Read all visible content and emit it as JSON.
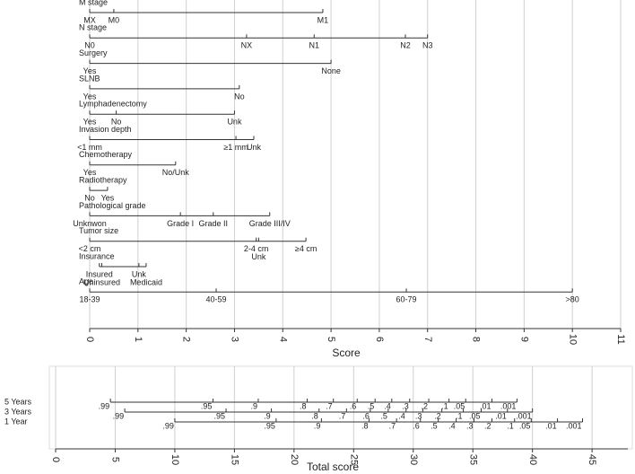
{
  "chart_data": [
    {
      "type": "nomogram",
      "xlabel": "Score",
      "xlim": [
        0,
        11
      ],
      "xticks": [
        0,
        1,
        2,
        3,
        4,
        5,
        6,
        7,
        8,
        9,
        10,
        11
      ],
      "rows": [
        {
          "name": "M stage",
          "levels": [
            "MX",
            "M0",
            "M1"
          ],
          "points": [
            0,
            0.5,
            4.83
          ]
        },
        {
          "name": "N stage",
          "levels": [
            "N0",
            "NX",
            "N1",
            "N2",
            "N3"
          ],
          "points": [
            0,
            3.25,
            4.65,
            6.54,
            7.0
          ]
        },
        {
          "name": "Surgery",
          "levels": [
            "Yes",
            "None"
          ],
          "points": [
            0,
            5.0
          ]
        },
        {
          "name": "SLNB",
          "levels": [
            "Yes",
            "No"
          ],
          "points": [
            0,
            3.1
          ]
        },
        {
          "name": "Lymphadenectomy",
          "levels": [
            "Yes",
            "No",
            "Unk"
          ],
          "points": [
            0,
            0.55,
            3.0
          ]
        },
        {
          "name": "Invasion depth",
          "levels": [
            "<1 mm",
            "≥1 mm",
            "Unk"
          ],
          "points": [
            0,
            3.03,
            3.4
          ]
        },
        {
          "name": "Chemotherapy",
          "levels": [
            "Yes",
            "No/Unk"
          ],
          "points": [
            0,
            1.78
          ]
        },
        {
          "name": "Radiotherapy",
          "levels": [
            "No",
            "Yes"
          ],
          "points": [
            0,
            0.37
          ]
        },
        {
          "name": "Pathological grade",
          "levels": [
            "Unknwon",
            "Grade I",
            "Grade II",
            "Grade III/IV"
          ],
          "points": [
            0,
            1.88,
            2.56,
            3.73
          ]
        },
        {
          "name": "Tumor size",
          "levels": [
            "<2 cm",
            "2-4 cm",
            "Unk",
            "≥4 cm"
          ],
          "points": [
            0,
            3.45,
            3.5,
            4.48
          ]
        },
        {
          "name": "Insurance",
          "levels": [
            "Insured",
            "Uninsured",
            "Unk",
            "Medicaid"
          ],
          "points": [
            0.2,
            0.25,
            1.02,
            1.17
          ]
        },
        {
          "name": "Age",
          "levels": [
            "18-39",
            "40-59",
            "60-79",
            ">80"
          ],
          "points": [
            0,
            2.62,
            6.56,
            10.0
          ]
        }
      ]
    },
    {
      "type": "nomogram",
      "xlabel": "Total score",
      "xlim": [
        0,
        48
      ],
      "xticks": [
        0,
        5,
        10,
        15,
        20,
        25,
        30,
        35,
        40,
        45
      ],
      "rows": [
        {
          "name": "5 Years",
          "levels": [
            ".99",
            ".95",
            ".9",
            ".8",
            ".7",
            ".6",
            ".5",
            ".4",
            ".3",
            ".2",
            ".1",
            ".05",
            ".01",
            ".001"
          ],
          "points": [
            4.6,
            13.2,
            17.0,
            21.1,
            23.3,
            25.3,
            26.8,
            28.2,
            29.7,
            31.3,
            33.0,
            34.4,
            36.6,
            38.7
          ]
        },
        {
          "name": "3 Years",
          "levels": [
            ".99",
            ".95",
            ".9",
            ".8",
            ".7",
            ".6",
            ".5",
            ".4",
            ".3",
            ".2",
            ".1",
            ".05",
            ".01",
            ".001"
          ],
          "points": [
            5.8,
            14.3,
            18.1,
            22.1,
            24.4,
            26.4,
            27.9,
            29.4,
            30.8,
            32.4,
            34.2,
            35.7,
            37.9,
            40.0
          ]
        },
        {
          "name": "1 Year",
          "levels": [
            ".99",
            ".95",
            ".9",
            ".8",
            ".7",
            ".6",
            ".5",
            ".4",
            ".3",
            ".2",
            ".1",
            ".05",
            ".01",
            ".001"
          ],
          "points": [
            10.0,
            18.5,
            22.3,
            26.3,
            28.6,
            30.6,
            32.1,
            33.6,
            35.1,
            36.6,
            38.5,
            39.9,
            42.1,
            44.2
          ]
        }
      ]
    }
  ]
}
